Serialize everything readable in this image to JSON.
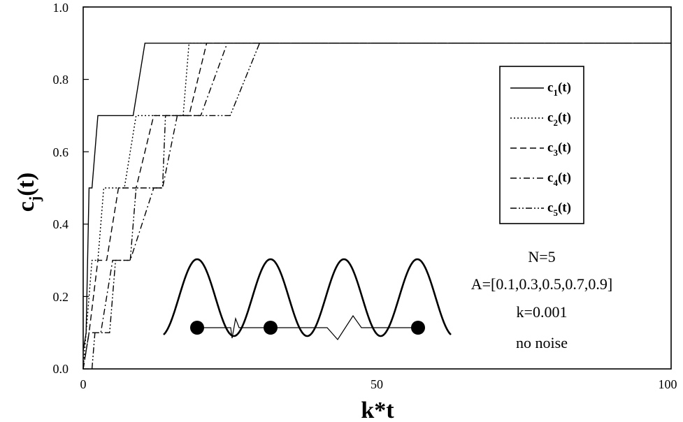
{
  "chart_data": {
    "type": "line",
    "xlabel": "k*t",
    "ylabel": "c_j(t)",
    "xlim": [
      0,
      100
    ],
    "ylim": [
      0,
      1.0
    ],
    "xticks": [
      "0",
      "50",
      "100"
    ],
    "yticks": [
      "0.0",
      "0.2",
      "0.4",
      "0.6",
      "0.8",
      "1.0"
    ],
    "legend_position": "top-right",
    "legend": [
      {
        "main": "c",
        "sub": "1",
        "tail": "(t)",
        "style": "solid"
      },
      {
        "main": "c",
        "sub": "2",
        "tail": "(t)",
        "style": "dotted"
      },
      {
        "main": "c",
        "sub": "3",
        "tail": "(t)",
        "style": "dashed"
      },
      {
        "main": "c",
        "sub": "4",
        "tail": "(t)",
        "style": "dash-dot"
      },
      {
        "main": "c",
        "sub": "5",
        "tail": "(t)",
        "style": "dash-dot-dot"
      }
    ],
    "series": [
      {
        "name": "c1(t)",
        "points": [
          [
            0,
            0.05
          ],
          [
            0.5,
            0.1
          ],
          [
            1,
            0.5
          ],
          [
            1.5,
            0.5
          ],
          [
            2.5,
            0.7
          ],
          [
            8.5,
            0.7
          ],
          [
            10.5,
            0.9
          ],
          [
            100,
            0.9
          ]
        ]
      },
      {
        "name": "c2(t)",
        "points": [
          [
            0,
            0.0
          ],
          [
            0.5,
            0.1
          ],
          [
            1.5,
            0.3
          ],
          [
            2.5,
            0.3
          ],
          [
            3.5,
            0.5
          ],
          [
            7,
            0.5
          ],
          [
            9,
            0.7
          ],
          [
            17,
            0.7
          ],
          [
            18,
            0.9
          ],
          [
            100,
            0.9
          ]
        ]
      },
      {
        "name": "c3(t)",
        "points": [
          [
            0,
            0.0
          ],
          [
            1,
            0.1
          ],
          [
            2.5,
            0.3
          ],
          [
            4,
            0.3
          ],
          [
            6,
            0.5
          ],
          [
            9,
            0.5
          ],
          [
            12,
            0.7
          ],
          [
            18,
            0.7
          ],
          [
            21,
            0.9
          ],
          [
            100,
            0.9
          ]
        ]
      },
      {
        "name": "c4(t)",
        "points": [
          [
            0,
            0.0
          ],
          [
            1,
            0.1
          ],
          [
            3,
            0.1
          ],
          [
            5,
            0.3
          ],
          [
            8,
            0.3
          ],
          [
            12,
            0.5
          ],
          [
            13.5,
            0.5
          ],
          [
            16,
            0.7
          ],
          [
            20,
            0.7
          ],
          [
            24.5,
            0.9
          ],
          [
            100,
            0.9
          ]
        ]
      },
      {
        "name": "c5(t)",
        "points": [
          [
            1.5,
            0.0
          ],
          [
            2,
            0.1
          ],
          [
            4.5,
            0.1
          ],
          [
            5.5,
            0.3
          ],
          [
            8,
            0.3
          ],
          [
            9,
            0.5
          ],
          [
            13.5,
            0.5
          ],
          [
            14,
            0.7
          ],
          [
            25,
            0.7
          ],
          [
            30,
            0.9
          ],
          [
            100,
            0.9
          ]
        ]
      }
    ],
    "annotation": [
      "N=5",
      "A=[0.1,0.3,0.5,0.7,0.9]",
      "k=0.001",
      "no noise"
    ]
  }
}
